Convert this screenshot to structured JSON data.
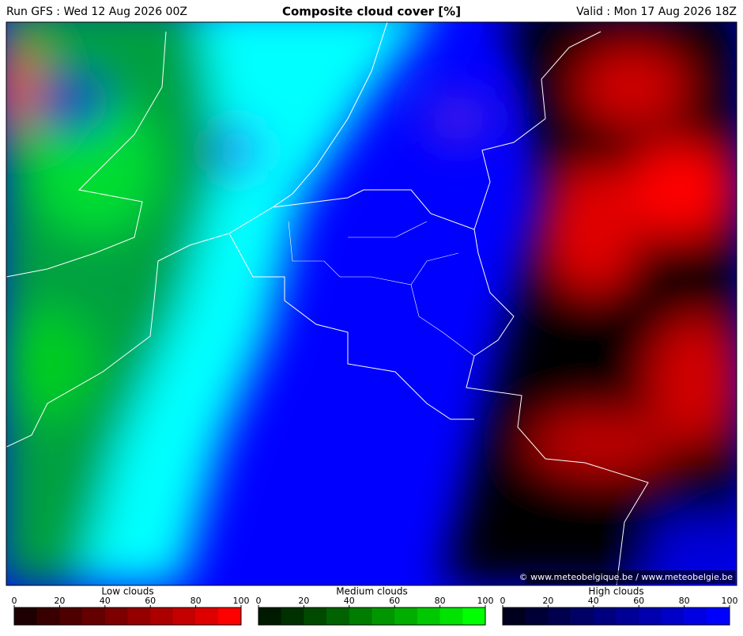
{
  "header": {
    "run": "Run GFS : Wed 12 Aug 2026 00Z",
    "title": "Composite cloud cover [%]",
    "valid": "Valid : Mon 17 Aug 2026 18Z"
  },
  "credit": "© www.meteobelgique.be / www.meteobelgie.be",
  "legends": [
    {
      "title": "Low clouds",
      "ticks": [
        0,
        20,
        40,
        60,
        80,
        100
      ],
      "colors": [
        "#1e0000",
        "#380000",
        "#4e0000",
        "#640000",
        "#7c0000",
        "#940000",
        "#ac0000",
        "#c40000",
        "#de0000",
        "#ff0000"
      ]
    },
    {
      "title": "Medium clouds",
      "ticks": [
        0,
        20,
        40,
        60,
        80,
        100
      ],
      "colors": [
        "#001a00",
        "#003000",
        "#004a00",
        "#006200",
        "#007c00",
        "#009600",
        "#00ae00",
        "#00c800",
        "#00e200",
        "#00ff00"
      ]
    },
    {
      "title": "High clouds",
      "ticks": [
        0,
        20,
        40,
        60,
        80,
        100
      ],
      "colors": [
        "#00001e",
        "#000036",
        "#00004e",
        "#000066",
        "#00007e",
        "#000096",
        "#0000ae",
        "#0000c8",
        "#0000e2",
        "#0000ff"
      ]
    }
  ]
}
